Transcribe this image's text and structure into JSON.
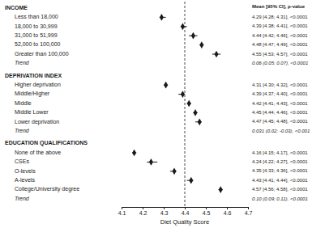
{
  "chart_data": {
    "type": "forest",
    "marker": "diamond",
    "xlabel": "Diet Quality Score",
    "xlim": [
      4.1,
      4.7
    ],
    "xticks": [
      4.1,
      4.2,
      4.3,
      4.4,
      4.5,
      4.6,
      4.7
    ],
    "reference_line": 4.4,
    "column_header": "Mean [95% CI], p-value",
    "groups": [
      {
        "title": "INCOME",
        "categories": [
          "Less than 18,000",
          "18,000 to 30,999",
          "31,000 to 51,999",
          "52,000 to 100,000",
          "Greater than 100,000"
        ],
        "values": [
          4.29,
          4.39,
          4.44,
          4.48,
          4.55
        ],
        "ci_low": [
          4.28,
          4.38,
          4.42,
          4.47,
          4.53
        ],
        "ci_high": [
          4.31,
          4.41,
          4.46,
          4.49,
          4.57
        ],
        "value_labels": [
          "4.29 [4.28; 4.31], <0.0001",
          "4.39 [4.38; 4.41], <0.0001",
          "4.44 [4.42; 4.46], <0.0001",
          "4.48 [4.47; 4.49], <0.0001",
          "4.55 [4.53; 4.57], <0.0001"
        ],
        "trend_label": "Trend",
        "trend_text": "0.06 (0.05; 0.07), <0.0001"
      },
      {
        "title": "DEPRIVATION INDEX",
        "categories": [
          "Higher deprivation",
          "Middle/Higher",
          "Middle",
          "Middle Lower",
          "Lower deprivation"
        ],
        "values": [
          4.31,
          4.39,
          4.42,
          4.45,
          4.47
        ],
        "ci_low": [
          4.3,
          4.37,
          4.41,
          4.44,
          4.45
        ],
        "ci_high": [
          4.32,
          4.4,
          4.43,
          4.46,
          4.48
        ],
        "value_labels": [
          "4.31 [4.30; 4.32], <0.0001",
          "4.39 [4.37; 4.40], <0.0001",
          "4.42 [4.41; 4.43], <0.0001",
          "4.45 [4.44; 4.46], <0.0001",
          "4.47 [4.45; 4.48], <0.0001"
        ],
        "trend_label": "Trend",
        "trend_text": "0.031 (0.02; -0.03), <0.001"
      },
      {
        "title": "EDUCATION QUALIFICATIONS",
        "categories": [
          "None of the above",
          "CSEs",
          "O-levels",
          "A-levels",
          "College/University degree"
        ],
        "values": [
          4.16,
          4.24,
          4.35,
          4.43,
          4.57
        ],
        "ci_low": [
          4.15,
          4.22,
          4.33,
          4.41,
          4.56
        ],
        "ci_high": [
          4.17,
          4.27,
          4.36,
          4.44,
          4.58
        ],
        "value_labels": [
          "4.16 [4.15; 4.17], <0.0001",
          "4.24 [4.22; 4.27], <0.0001",
          "4.35 [4.33; 4.36], <0.0001",
          "4.43 [4.41; 4.44], <0.0001",
          "4.57 [4.56; 4.58], <0.0001"
        ],
        "trend_label": "Trend",
        "trend_text": "0.10 (0.09; 0.11), <0.0001"
      }
    ]
  }
}
